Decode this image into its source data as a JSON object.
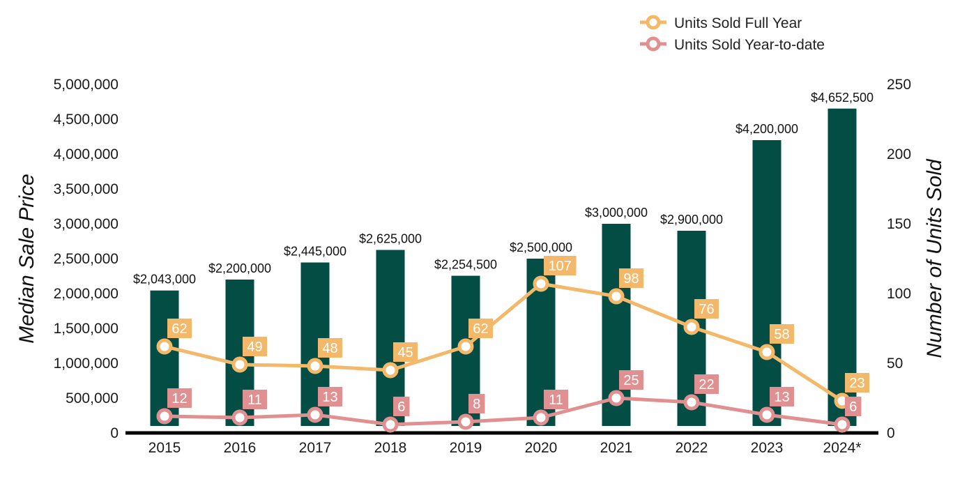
{
  "chart_data": {
    "type": "bar",
    "categories": [
      "2015",
      "2016",
      "2017",
      "2018",
      "2019",
      "2020",
      "2021",
      "2022",
      "2023",
      "2024*"
    ],
    "bar_series": {
      "name": "Median Sale Price",
      "values": [
        2043000,
        2200000,
        2445000,
        2625000,
        2254500,
        2500000,
        3000000,
        2900000,
        4200000,
        4652500
      ],
      "labels": [
        "$2,043,000",
        "$2,200,000",
        "$2,445,000",
        "$2,625,000",
        "$2,254,500",
        "$2,500,000",
        "$3,000,000",
        "$2,900,000",
        "$4,200,000",
        "$4,652,500"
      ],
      "color": "#034d44"
    },
    "line_series": [
      {
        "name": "Units Sold Full Year",
        "values": [
          62,
          49,
          48,
          45,
          62,
          107,
          98,
          76,
          58,
          23
        ],
        "labels": [
          "62",
          "49",
          "48",
          "45",
          "62",
          "107",
          "98",
          "76",
          "58",
          "23"
        ],
        "color": "#f4b86a"
      },
      {
        "name": "Units Sold Year-to-date",
        "values": [
          12,
          11,
          13,
          6,
          8,
          11,
          25,
          22,
          13,
          6
        ],
        "labels": [
          "12",
          "11",
          "13",
          "6",
          "8",
          "11",
          "25",
          "22",
          "13",
          "6"
        ],
        "color": "#e09090"
      }
    ],
    "ylabel": "Median Sale Price",
    "y2label": "Number of Units Sold",
    "ylim": [
      0,
      5000000
    ],
    "y2lim": [
      0,
      250
    ],
    "yticks": [
      0,
      500000,
      1000000,
      1500000,
      2000000,
      2500000,
      3000000,
      3500000,
      4000000,
      4500000,
      5000000
    ],
    "ytick_labels": [
      "0",
      "500,000",
      "1,000,000",
      "1,500,000",
      "2,000,000",
      "2,500,000",
      "3,000,000",
      "3,500,000",
      "4,000,000",
      "4,500,000",
      "5,000,000"
    ],
    "y2ticks": [
      0,
      50,
      100,
      150,
      200,
      250
    ],
    "y2tick_labels": [
      "0",
      "50",
      "100",
      "150",
      "200",
      "250"
    ],
    "legend_position": "top-right",
    "grid": false
  }
}
